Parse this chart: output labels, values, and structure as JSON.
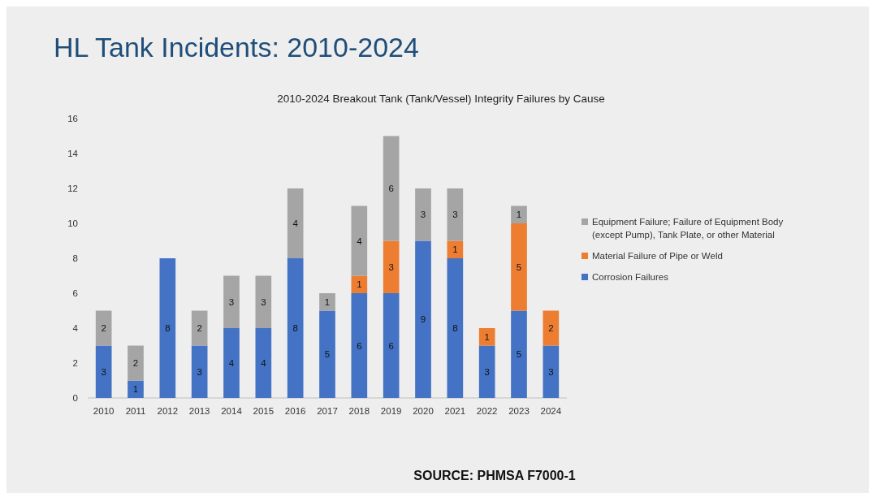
{
  "chart_data": {
    "type": "bar",
    "title": "2010-2024 Breakout Tank (Tank/Vessel) Integrity Failures by Cause",
    "subtitle": "HL Tank Incidents: 2010-2024",
    "annotations": [
      "SOURCE: PHMSA F7000-1"
    ],
    "categories": [
      "2010",
      "2011",
      "2012",
      "2013",
      "2014",
      "2015",
      "2016",
      "2017",
      "2018",
      "2019",
      "2020",
      "2021",
      "2022",
      "2023",
      "2024"
    ],
    "stacked": true,
    "data_labels": true,
    "legend": "right",
    "grid": false,
    "ylim": [
      0,
      16
    ],
    "yticks": [
      0,
      2,
      4,
      6,
      8,
      10,
      12,
      14,
      16
    ],
    "series": [
      {
        "name": "Corrosion Failures",
        "color": "#4472c4",
        "values": [
          3,
          1,
          8,
          3,
          4,
          4,
          8,
          5,
          6,
          6,
          9,
          8,
          3,
          5,
          3
        ]
      },
      {
        "name": "Material Failure of Pipe or Weld",
        "color": "#ed7d31",
        "values": [
          null,
          null,
          null,
          null,
          null,
          null,
          null,
          null,
          1,
          3,
          null,
          1,
          1,
          5,
          2
        ]
      },
      {
        "name": "Equipment Failure; Failure of Equipment Body (except Pump), Tank Plate, or other Material",
        "color": "#a5a5a5",
        "values": [
          2,
          2,
          null,
          2,
          3,
          3,
          4,
          1,
          4,
          6,
          3,
          3,
          null,
          1,
          null
        ]
      }
    ]
  }
}
